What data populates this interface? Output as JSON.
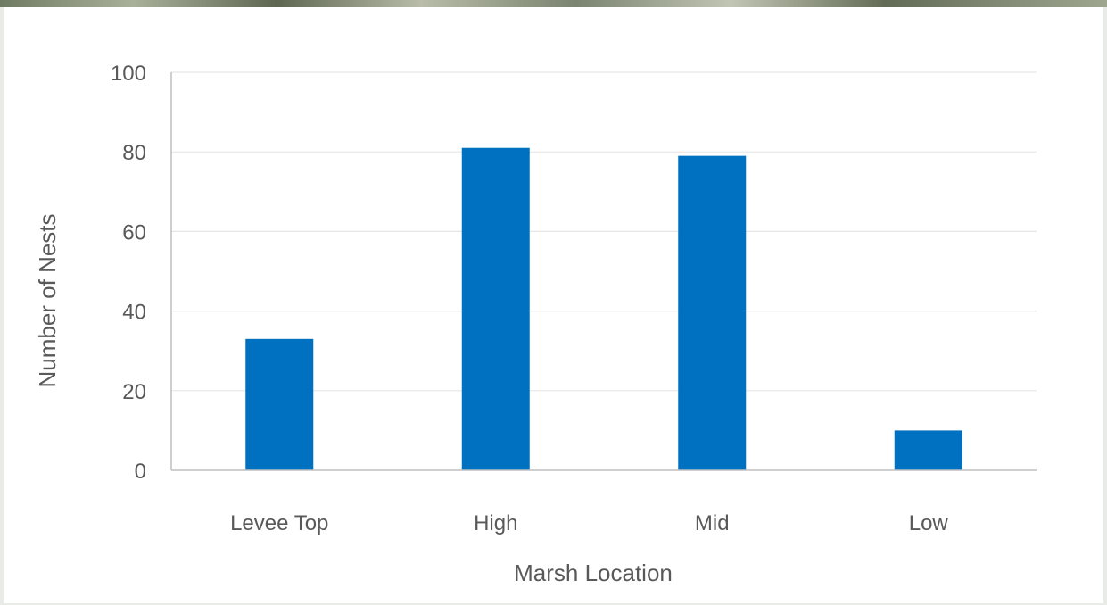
{
  "chart_data": {
    "type": "bar",
    "categories": [
      "Levee Top",
      "High",
      "Mid",
      "Low"
    ],
    "values": [
      33,
      81,
      79,
      10
    ],
    "title": "",
    "xlabel": "Marsh Location",
    "ylabel": "Number of Nests",
    "ylim": [
      0,
      100
    ],
    "yticks": [
      "0",
      "20",
      "40",
      "60",
      "80",
      "100"
    ],
    "grid": true,
    "legend": "none",
    "bar_color": "#0070c0"
  }
}
